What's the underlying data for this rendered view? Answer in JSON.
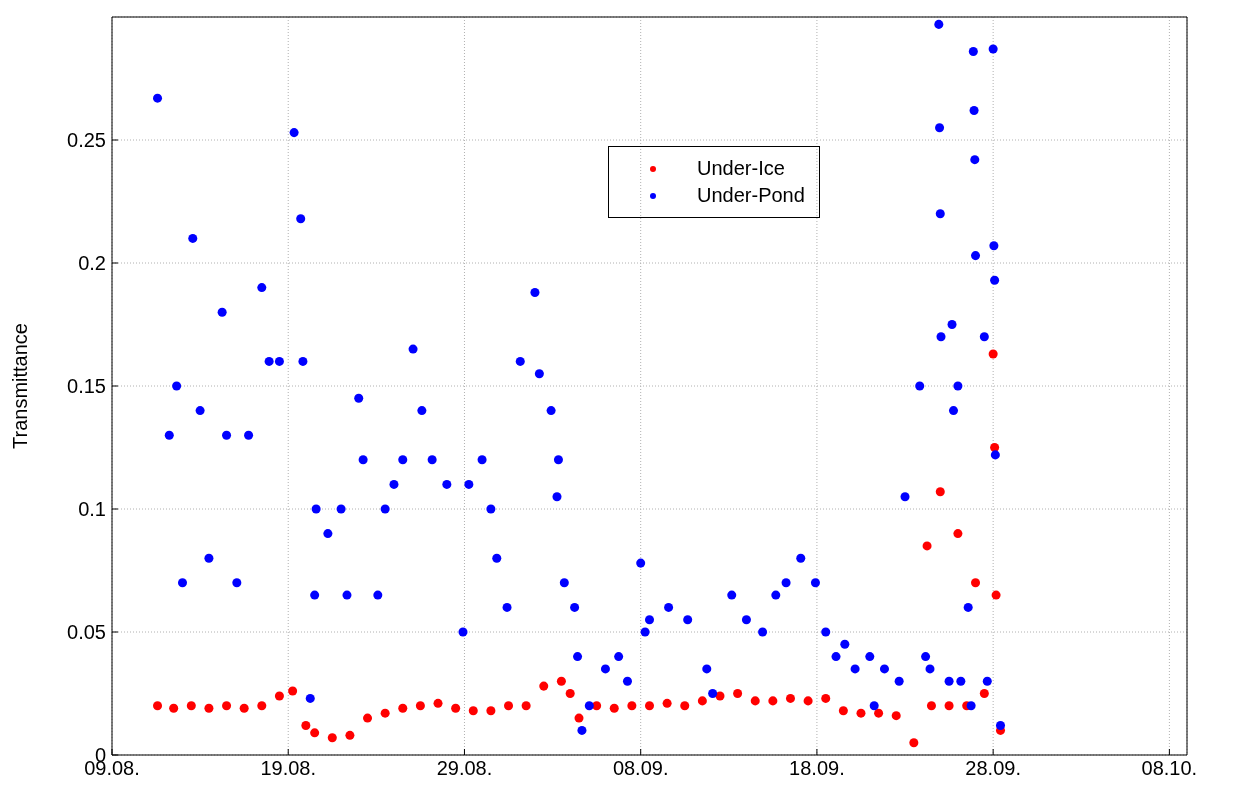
{
  "chart_data": {
    "type": "scatter",
    "ylabel": "Transmittance",
    "ylim": [
      0,
      0.3
    ],
    "yticks": [
      0,
      0.05,
      0.1,
      0.15,
      0.2,
      0.25
    ],
    "xlim": [
      "--08-09",
      "--10-09"
    ],
    "xticks": [
      {
        "value": "--08-09",
        "label": "09.08."
      },
      {
        "value": "--08-19",
        "label": "19.08."
      },
      {
        "value": "--08-29",
        "label": "29.08."
      },
      {
        "value": "--09-08",
        "label": "08.09."
      },
      {
        "value": "--09-18",
        "label": "18.09."
      },
      {
        "value": "--09-28",
        "label": "28.09."
      },
      {
        "value": "--10-08",
        "label": "08.10."
      }
    ],
    "grid": true,
    "legend": "top",
    "marker": "circle",
    "series": [
      {
        "name": "Under-Ice",
        "color": "#ff0000",
        "x": [
          "--08-11T14:00",
          "--08-12T12:00",
          "--08-13T12:00",
          "--08-14T12:00",
          "--08-15T12:00",
          "--08-16T12:00",
          "--08-17T12:00",
          "--08-18T12:00",
          "--08-19T06:00",
          "--08-20T00:00",
          "--08-20T12:00",
          "--08-21T12:00",
          "--08-22T12:00",
          "--08-23T12:00",
          "--08-24T12:00",
          "--08-25T12:00",
          "--08-26T12:00",
          "--08-27T12:00",
          "--08-28T12:00",
          "--08-29T12:00",
          "--08-30T12:00",
          "--08-31T12:00",
          "--09-01T12:00",
          "--09-02T12:00",
          "--09-03T12:00",
          "--09-04T00:00",
          "--09-04T12:00",
          "--09-05T12:00",
          "--09-06T12:00",
          "--09-07T12:00",
          "--09-08T12:00",
          "--09-09T12:00",
          "--09-10T12:00",
          "--09-11T12:00",
          "--09-12T12:00",
          "--09-13T12:00",
          "--09-14T12:00",
          "--09-15T12:00",
          "--09-16T12:00",
          "--09-17T12:00",
          "--09-18T12:00",
          "--09-19T12:00",
          "--09-20T12:00",
          "--09-21T12:00",
          "--09-22T12:00",
          "--09-23T12:00",
          "--09-24T06:00",
          "--09-24T12:00",
          "--09-25T00:00",
          "--09-25T12:00",
          "--09-26T00:00",
          "--09-26T12:00",
          "--09-27T00:00",
          "--09-27T12:00",
          "--09-28T00:00",
          "--09-28T02:00",
          "--09-28T04:00",
          "--09-28T10:00"
        ],
        "values": [
          0.02,
          0.019,
          0.02,
          0.019,
          0.02,
          0.019,
          0.02,
          0.024,
          0.026,
          0.012,
          0.009,
          0.007,
          0.008,
          0.015,
          0.017,
          0.019,
          0.02,
          0.021,
          0.019,
          0.018,
          0.018,
          0.02,
          0.02,
          0.028,
          0.03,
          0.025,
          0.015,
          0.02,
          0.019,
          0.02,
          0.02,
          0.021,
          0.02,
          0.022,
          0.024,
          0.025,
          0.022,
          0.022,
          0.023,
          0.022,
          0.023,
          0.018,
          0.017,
          0.017,
          0.016,
          0.005,
          0.085,
          0.02,
          0.107,
          0.02,
          0.09,
          0.02,
          0.07,
          0.025,
          0.163,
          0.125,
          0.065,
          0.01
        ]
      },
      {
        "name": "Under-Pond",
        "color": "#0000ff",
        "x": [
          "--08-11T14:00",
          "--08-12T06:00",
          "--08-12T16:00",
          "--08-13T00:00",
          "--08-13T14:00",
          "--08-14T00:00",
          "--08-14T12:00",
          "--08-15T06:00",
          "--08-15T12:00",
          "--08-16T02:00",
          "--08-16T18:00",
          "--08-17T12:00",
          "--08-17T22:00",
          "--08-18T12:00",
          "--08-19T08:00",
          "--08-19T17:00",
          "--08-19T20:00",
          "--08-20T06:00",
          "--08-20T12:00",
          "--08-20T14:00",
          "--08-21T06:00",
          "--08-22T00:00",
          "--08-22T08:00",
          "--08-23T00:00",
          "--08-23T06:00",
          "--08-24T02:00",
          "--08-24T12:00",
          "--08-25T00:00",
          "--08-25T12:00",
          "--08-26T02:00",
          "--08-26T14:00",
          "--08-27T04:00",
          "--08-28T00:00",
          "--08-28T22:00",
          "--08-29T06:00",
          "--08-30T00:00",
          "--08-30T12:00",
          "--08-30T20:00",
          "--08-31T10:00",
          "--09-01T04:00",
          "--09-02T00:00",
          "--09-02T06:00",
          "--09-02T22:00",
          "--09-03T06:00",
          "--09-03T08:00",
          "--09-03T16:00",
          "--09-04T06:00",
          "--09-04T10:00",
          "--09-04T16:00",
          "--09-05T02:00",
          "--09-06T00:00",
          "--09-06T18:00",
          "--09-07T06:00",
          "--09-08T00:00",
          "--09-08T06:00",
          "--09-08T12:00",
          "--09-09T14:00",
          "--09-10T16:00",
          "--09-11T18:00",
          "--09-12T02:00",
          "--09-13T04:00",
          "--09-14T00:00",
          "--09-14T22:00",
          "--09-15T16:00",
          "--09-16T06:00",
          "--09-17T02:00",
          "--09-17T22:00",
          "--09-18T12:00",
          "--09-19T02:00",
          "--09-19T14:00",
          "--09-20T04:00",
          "--09-21T00:00",
          "--09-21T06:00",
          "--09-21T20:00",
          "--09-22T16:00",
          "--09-23T00:00",
          "--09-23T20:00",
          "--09-24T04:00",
          "--09-24T10:00",
          "--09-24T22:00",
          "--09-24T23:00",
          "--09-25T00:00",
          "--09-25T01:00",
          "--09-25T12:00",
          "--09-25T16:00",
          "--09-25T18:00",
          "--09-26T00:00",
          "--09-26T04:00",
          "--09-26T14:00",
          "--09-26T18:00",
          "--09-26T21:00",
          "--09-26T22:00",
          "--09-26T23:00",
          "--09-27T00:00",
          "--09-27T12:00",
          "--09-27T16:00",
          "--09-28T00:00",
          "--09-28T01:00",
          "--09-28T02:00",
          "--09-28T03:00",
          "--09-28T10:00"
        ],
        "values": [
          0.267,
          0.13,
          0.15,
          0.07,
          0.21,
          0.14,
          0.08,
          0.18,
          0.13,
          0.07,
          0.13,
          0.19,
          0.16,
          0.16,
          0.253,
          0.218,
          0.16,
          0.023,
          0.065,
          0.1,
          0.09,
          0.1,
          0.065,
          0.145,
          0.12,
          0.065,
          0.1,
          0.11,
          0.12,
          0.165,
          0.14,
          0.12,
          0.11,
          0.05,
          0.11,
          0.12,
          0.1,
          0.08,
          0.06,
          0.16,
          0.188,
          0.155,
          0.14,
          0.105,
          0.12,
          0.07,
          0.06,
          0.04,
          0.01,
          0.02,
          0.035,
          0.04,
          0.03,
          0.078,
          0.05,
          0.055,
          0.06,
          0.055,
          0.035,
          0.025,
          0.065,
          0.055,
          0.05,
          0.065,
          0.07,
          0.08,
          0.07,
          0.05,
          0.04,
          0.045,
          0.035,
          0.04,
          0.02,
          0.035,
          0.03,
          0.105,
          0.15,
          0.04,
          0.035,
          0.297,
          0.255,
          0.22,
          0.17,
          0.03,
          0.175,
          0.14,
          0.15,
          0.03,
          0.06,
          0.02,
          0.286,
          0.262,
          0.242,
          0.203,
          0.17,
          0.03,
          0.287,
          0.207,
          0.193,
          0.122,
          0.012
        ]
      }
    ]
  }
}
